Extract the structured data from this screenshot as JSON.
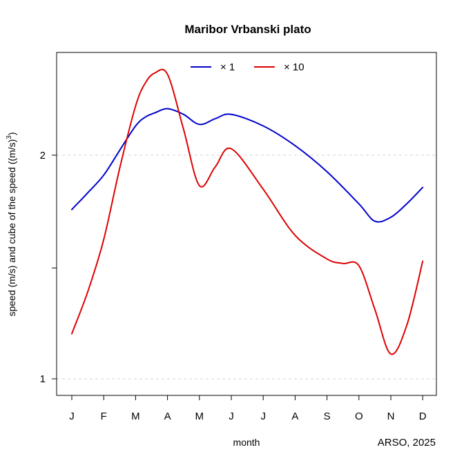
{
  "chart_data": {
    "type": "line",
    "title": "Maribor Vrbanski plato",
    "xlabel": "month",
    "ylabel_main": "speed (m/s) and cube of the speed ((m/s)",
    "ylabel_sup": "3",
    "ylabel_close": ")",
    "credit": "ARSO, 2025",
    "categories": [
      "J",
      "F",
      "M",
      "A",
      "M",
      "J",
      "J",
      "A",
      "S",
      "O",
      "N",
      "D"
    ],
    "y_scale": "log",
    "ylim": [
      0.95,
      2.75
    ],
    "y_ticks": [
      {
        "value": 1,
        "label": "1"
      },
      {
        "value": 1.41,
        "label": ""
      },
      {
        "value": 2,
        "label": "2"
      }
    ],
    "gridlines": [
      1,
      2
    ],
    "legend": {
      "position": "top"
    },
    "series": [
      {
        "name": "× 1",
        "color": "#0000cc",
        "x": [
          1,
          1.5,
          2,
          2.5,
          3,
          3.3,
          3.6,
          4,
          4.5,
          5,
          5.5,
          6,
          7,
          8,
          9,
          10,
          10.5,
          11,
          11.5,
          12
        ],
        "values": [
          1.69,
          1.78,
          1.88,
          2.03,
          2.19,
          2.25,
          2.28,
          2.31,
          2.27,
          2.2,
          2.24,
          2.27,
          2.19,
          2.06,
          1.9,
          1.72,
          1.63,
          1.65,
          1.72,
          1.81
        ]
      },
      {
        "name": "× 10",
        "color": "#dd0000",
        "x": [
          1,
          1.5,
          2,
          2.5,
          3,
          3.3,
          3.6,
          4,
          4.5,
          5,
          5.5,
          6,
          7,
          8,
          9,
          9.5,
          10,
          10.5,
          11,
          11.5,
          12
        ],
        "values": [
          1.15,
          1.31,
          1.54,
          1.92,
          2.33,
          2.5,
          2.58,
          2.57,
          2.17,
          1.82,
          1.93,
          2.04,
          1.8,
          1.56,
          1.45,
          1.43,
          1.42,
          1.24,
          1.08,
          1.18,
          1.44
        ]
      }
    ]
  }
}
